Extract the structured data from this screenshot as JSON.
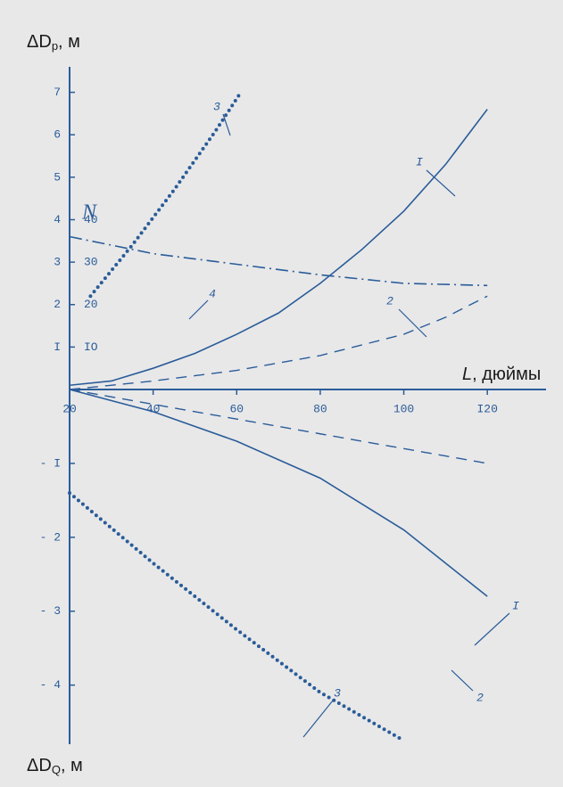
{
  "chart_data": [
    {
      "type": "line",
      "y_label_parts": [
        "ΔD",
        "p",
        ", м"
      ],
      "x_label_parts": [
        "L",
        ", дюймы"
      ],
      "y2_label": "N",
      "xlim": [
        20,
        130
      ],
      "xticks": [
        20,
        40,
        60,
        80,
        100,
        {
          "value": 120,
          "label": "I20"
        }
      ],
      "ylim": [
        0,
        7.6
      ],
      "yticks": [
        {
          "value": 1,
          "label": "I"
        },
        2,
        3,
        4,
        5,
        6,
        7
      ],
      "y2lim": [
        0,
        76
      ],
      "y2ticks": [
        {
          "value": 10,
          "label": "IO"
        },
        20,
        30,
        40
      ],
      "color": "#2a5c98",
      "series": [
        {
          "name": "I",
          "style": "solid",
          "x": [
            20,
            30,
            40,
            50,
            60,
            70,
            80,
            90,
            100,
            110,
            120
          ],
          "values": [
            0.1,
            0.2,
            0.5,
            0.85,
            1.3,
            1.8,
            2.5,
            3.3,
            4.2,
            5.3,
            6.6
          ]
        },
        {
          "name": "2",
          "style": "dashed",
          "x": [
            20,
            40,
            60,
            80,
            100,
            110,
            120
          ],
          "values": [
            0,
            0.2,
            0.45,
            0.8,
            1.3,
            1.7,
            2.2
          ]
        },
        {
          "name": "3",
          "style": "dotted",
          "x": [
            25,
            30,
            35,
            40,
            45,
            50,
            55,
            61
          ],
          "values": [
            2.2,
            2.8,
            3.4,
            4.05,
            4.7,
            5.4,
            6.1,
            7.0
          ]
        },
        {
          "name": "4",
          "style": "dashdot",
          "axis": "y2",
          "x": [
            20,
            40,
            60,
            80,
            100,
            120
          ],
          "values": [
            36,
            32,
            29.5,
            27,
            25,
            24.5
          ]
        }
      ]
    },
    {
      "type": "line",
      "y_label_parts": [
        "ΔD",
        "Q",
        ", м"
      ],
      "xlim": [
        20,
        130
      ],
      "ylim": [
        -4.8,
        0
      ],
      "yticks": [
        {
          "value": -1,
          "label": "- I"
        },
        {
          "value": -2,
          "label": "- 2"
        },
        {
          "value": -3,
          "label": "- 3"
        },
        {
          "value": -4,
          "label": "- 4"
        }
      ],
      "color": "#2a5c98",
      "series": [
        {
          "name": "I",
          "style": "solid",
          "x": [
            20,
            40,
            60,
            80,
            100,
            120
          ],
          "values": [
            0,
            -0.3,
            -0.7,
            -1.2,
            -1.9,
            -2.8
          ]
        },
        {
          "name": "2",
          "style": "dashed",
          "x": [
            20,
            40,
            60,
            80,
            100,
            120
          ],
          "values": [
            0,
            -0.2,
            -0.4,
            -0.6,
            -0.8,
            -1.0
          ]
        },
        {
          "name": "3",
          "style": "dotted",
          "x": [
            20,
            40,
            60,
            80,
            100
          ],
          "values": [
            -1.4,
            -2.35,
            -3.25,
            -4.1,
            -4.75
          ]
        }
      ]
    }
  ]
}
